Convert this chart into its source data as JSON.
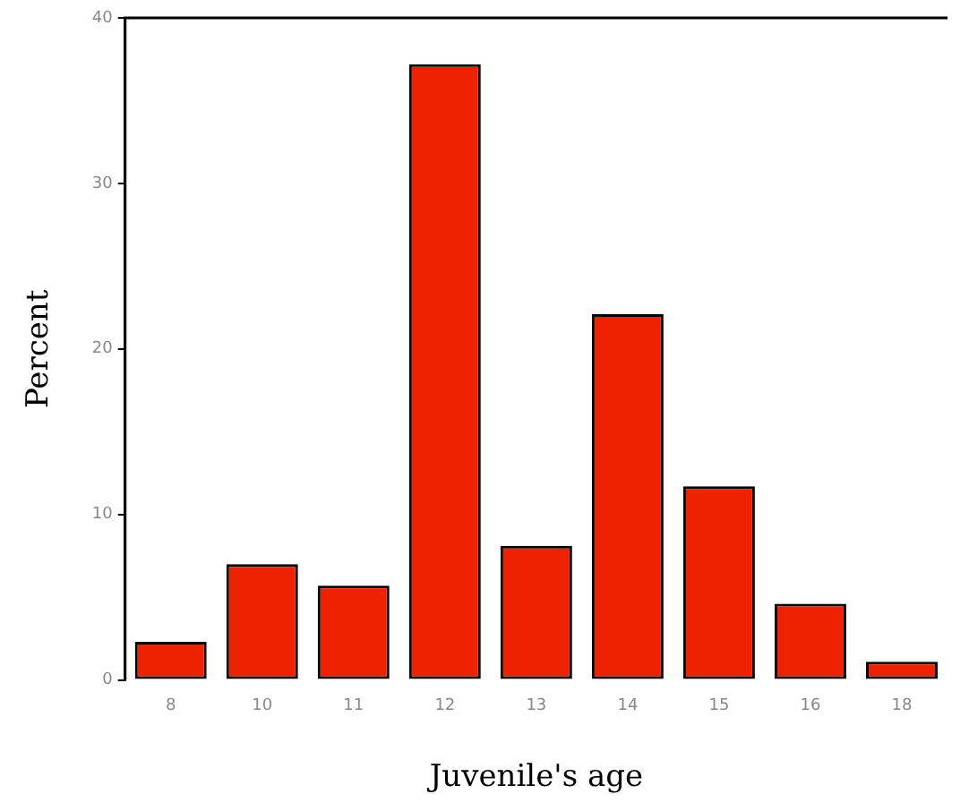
{
  "chart_data": {
    "type": "bar",
    "xlabel": "Juvenile's age",
    "ylabel": "Percent",
    "categories": [
      "8",
      "10",
      "11",
      "12",
      "13",
      "14",
      "15",
      "16",
      "18"
    ],
    "values": [
      2.3,
      7.0,
      5.7,
      37.2,
      8.1,
      22.1,
      11.7,
      4.6,
      1.1
    ],
    "color": "#ee2200",
    "ylim": [
      0,
      40
    ],
    "yticks": [
      0,
      10,
      20,
      30,
      40
    ],
    "grid": false,
    "legend": false
  }
}
